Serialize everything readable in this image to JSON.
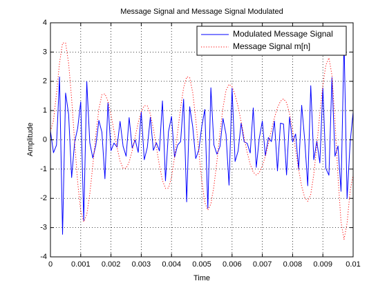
{
  "chart_data": {
    "type": "line",
    "title": "Message Signal and Message Signal Modulated",
    "x_label": "Time",
    "y_label": "Amplitude",
    "xlim": [
      0,
      0.01
    ],
    "ylim": [
      -4,
      4
    ],
    "xticks": [
      0,
      0.001,
      0.002,
      0.003,
      0.004,
      0.005,
      0.006,
      0.007,
      0.008,
      0.009,
      0.01
    ],
    "yticks": [
      -4,
      -3,
      -2,
      -1,
      0,
      1,
      2,
      3,
      4
    ],
    "grid": true,
    "legend": "northeast",
    "x": [
      0,
      0.0001,
      0.0002,
      0.0003,
      0.0004,
      0.0005,
      0.0006,
      0.0007,
      0.0008,
      0.0009,
      0.001,
      0.0011,
      0.0012,
      0.0013,
      0.0014,
      0.0015,
      0.0016,
      0.0017,
      0.0018,
      0.0019,
      0.002,
      0.0021,
      0.0022,
      0.0023,
      0.0024,
      0.0025,
      0.0026,
      0.0027,
      0.0028,
      0.0029,
      0.003,
      0.0031,
      0.0032,
      0.0033,
      0.0034,
      0.0035,
      0.0036,
      0.0037,
      0.0038,
      0.0039,
      0.004,
      0.0041,
      0.0042,
      0.0043,
      0.0044,
      0.0045,
      0.0046,
      0.0047,
      0.0048,
      0.0049,
      0.005,
      0.0051,
      0.0052,
      0.0053,
      0.0054,
      0.0055,
      0.0056,
      0.0057,
      0.0058,
      0.0059,
      0.006,
      0.0061,
      0.0062,
      0.0063,
      0.0064,
      0.0065,
      0.0066,
      0.0067,
      0.0068,
      0.0069,
      0.007,
      0.0071,
      0.0072,
      0.0073,
      0.0074,
      0.0075,
      0.0076,
      0.0077,
      0.0078,
      0.0079,
      0.008,
      0.0081,
      0.0082,
      0.0083,
      0.0084,
      0.0085,
      0.0086,
      0.0087,
      0.0088,
      0.0089,
      0.009,
      0.0091,
      0.0092,
      0.0093,
      0.0094,
      0.0095,
      0.0096,
      0.0097,
      0.0098,
      0.0099,
      0.01
    ],
    "series": [
      {
        "name": "Modulated Message Signal",
        "color": "#0000ff",
        "linestyle": "solid",
        "values": [
          0.3,
          -0.44,
          -0.18,
          2.15,
          -3.23,
          1.6,
          0.87,
          -1.29,
          -0.07,
          0.4,
          1.3,
          -2.76,
          1.99,
          -0.1,
          -0.62,
          -0.18,
          0.66,
          0.26,
          -1.33,
          1.27,
          -0.37,
          -0.11,
          -0.25,
          0.63,
          -0.22,
          -0.56,
          0.76,
          -0.28,
          0,
          -0.43,
          0.95,
          -0.68,
          -0.26,
          0.77,
          -0.36,
          -0.1,
          -0.38,
          1.33,
          -1.4,
          0.28,
          0.8,
          -0.6,
          -0.18,
          -0.06,
          1.39,
          -2.12,
          1.13,
          0.45,
          -0.64,
          -0.35,
          0.46,
          1.04,
          -2.34,
          1.78,
          -0.17,
          -0.49,
          -0.23,
          0.73,
          0.19,
          -1.55,
          1.76,
          -0.74,
          -0.38,
          0.57,
          -0.07,
          -0.12,
          -0.45,
          1.09,
          -0.94,
          0.06,
          0.64,
          -0.55,
          0.08,
          -0.06,
          0.64,
          -1.06,
          0.57,
          0.54,
          -1.2,
          0.78,
          -0.07,
          0.2,
          -1.01,
          1.18,
          0,
          -1.57,
          1.85,
          -0.68,
          -0.05,
          -0.79,
          1.77,
          -0.98,
          -1.21,
          2.13,
          -0.56,
          -0.21,
          -1.76,
          3.39,
          -2.01,
          -0.1,
          0.95
        ]
      },
      {
        "name": "Message Signal m[n]",
        "color": "#ff0000",
        "linestyle": "dotted",
        "values": [
          0.3,
          0.66,
          1.58,
          2.63,
          3.31,
          3.31,
          2.62,
          1.4,
          -0.08,
          -1.46,
          -2.44,
          -2.8,
          -2.55,
          -1.85,
          -0.87,
          0.18,
          1.05,
          1.54,
          1.57,
          1.32,
          0.86,
          0.3,
          -0.26,
          -0.72,
          -0.97,
          -0.97,
          -0.76,
          -0.38,
          0.1,
          0.58,
          0.96,
          1.17,
          1.16,
          0.88,
          0.38,
          -0.25,
          -0.88,
          -1.38,
          -1.66,
          -1.65,
          -1.28,
          -0.6,
          0.25,
          1.1,
          1.78,
          2.15,
          2.13,
          1.62,
          0.71,
          -0.38,
          -1.41,
          -2.14,
          -2.4,
          -2.19,
          -1.59,
          -0.73,
          0.23,
          1.09,
          1.69,
          1.9,
          1.81,
          1.54,
          1.13,
          0.62,
          0.08,
          -0.43,
          -0.84,
          -1.11,
          -1.2,
          -1.12,
          -0.9,
          -0.55,
          -0.13,
          0.33,
          0.75,
          1.1,
          1.32,
          1.4,
          1.27,
          0.89,
          0.32,
          -0.35,
          -1.02,
          -1.59,
          -1.97,
          -2.1,
          -1.86,
          -1.18,
          -0.2,
          0.9,
          1.88,
          2.56,
          2.8,
          2.21,
          0.66,
          -1.26,
          -2.81,
          -3.4,
          -2.85,
          -1.75,
          -1.2
        ]
      }
    ]
  }
}
